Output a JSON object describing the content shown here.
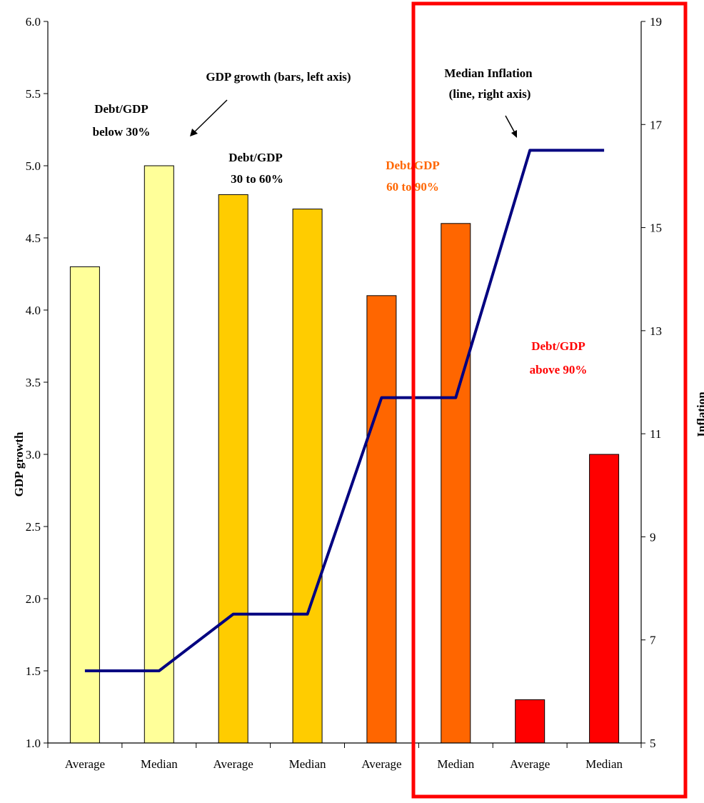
{
  "chart_data": {
    "type": "bar",
    "categories": [
      "Average",
      "Median",
      "Average",
      "Median",
      "Average",
      "Median",
      "Average",
      "Median"
    ],
    "series": [
      {
        "values": [
          4.3,
          5.0,
          4.8,
          4.7,
          4.1,
          4.6,
          1.3,
          3.0
        ],
        "axis": "left",
        "colors": [
          "#FFFF99",
          "#FFFF99",
          "#FFCC00",
          "#FFCC00",
          "#FF6600",
          "#FF6600",
          "#FF0000",
          "#FF0000"
        ]
      },
      {
        "type": "line",
        "axis": "right",
        "x_positions": [
          0,
          1,
          2,
          3,
          4,
          5,
          6,
          7
        ],
        "values": [
          6.4,
          6.4,
          7.5,
          7.5,
          11.7,
          11.7,
          16.5,
          16.5
        ],
        "color": "#000080"
      }
    ],
    "ylabel": "GDP growth",
    "ylabel_right": "Inflation",
    "ylim": [
      1.0,
      6.0
    ],
    "ylim_right": [
      5,
      19
    ],
    "yticks": [
      "1.0",
      "1.5",
      "2.0",
      "2.5",
      "3.0",
      "3.5",
      "4.0",
      "4.5",
      "5.0",
      "5.5",
      "6.0"
    ],
    "yticks_right": [
      "5",
      "7",
      "9",
      "11",
      "13",
      "15",
      "17",
      "19"
    ],
    "grid": false,
    "annotations": {
      "gdp_growth": "GDP growth (bars, left axis)",
      "median_inflation_line1": "Median Inflation",
      "median_inflation_line2": "(line, right axis)",
      "group1_line1": "Debt/GDP",
      "group1_line2": "below 30%",
      "group2_line1": "Debt/GDP",
      "group2_line2": "30 to 60%",
      "group3_line1": "Debt/GDP",
      "group3_line2": "60 to 90%",
      "group4_line1": "Debt/GDP",
      "group4_line2": "above 90%"
    },
    "colors": {
      "group1": "#FFFF99",
      "group2": "#FFCC00",
      "group3": "#FF6600",
      "group4": "#FF0000",
      "line": "#000080",
      "highlight_box": "#FF0000"
    }
  }
}
